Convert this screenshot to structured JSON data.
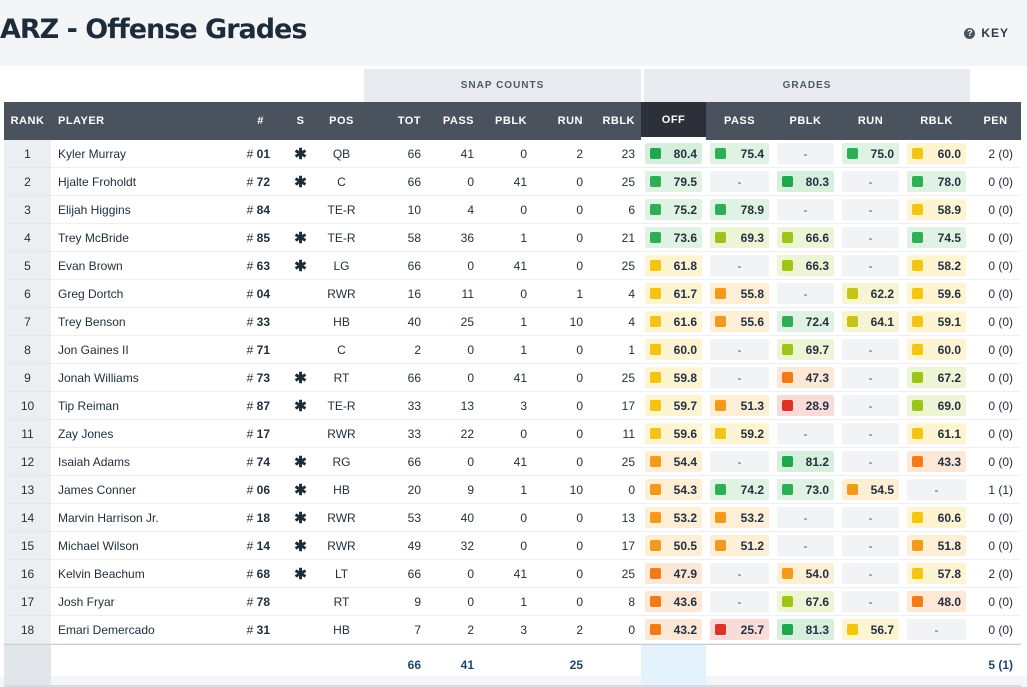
{
  "title": "ARZ - Offense Grades",
  "key": {
    "label": "KEY",
    "icon": "question-icon"
  },
  "groups": {
    "snap_counts": "SNAP COUNTS",
    "grades": "GRADES"
  },
  "columns": {
    "rank": "RANK",
    "player": "PLAYER",
    "num": "#",
    "starter": "S",
    "pos": "POS",
    "tot": "TOT",
    "pass": "PASS",
    "pblk": "PBLK",
    "run": "RUN",
    "rblk": "RBLK",
    "g_off": "OFF",
    "g_pass": "PASS",
    "g_pblk": "PBLK",
    "g_run": "RUN",
    "g_rblk": "RBLK",
    "pen": "PEN"
  },
  "grade_colors": {
    "dark_green": "#1fa84b",
    "green": "#2eae55",
    "light_green": "#9cc41d",
    "olive": "#c6c418",
    "yellow": "#f2c414",
    "orange": "#f39a1d",
    "dark_orange": "#ef7c17",
    "red": "#db3327"
  },
  "players": [
    {
      "rank": "1",
      "name": "Kyler Murray",
      "num": "01",
      "starter": "*",
      "pos": "QB",
      "tot": "66",
      "pass": "41",
      "pblk": "0",
      "run": "2",
      "rblk": "23",
      "g_off": "80.4",
      "g_pass": "75.4",
      "g_pblk": "-",
      "g_run": "75.0",
      "g_rblk": "60.0",
      "pen": "2 (0)"
    },
    {
      "rank": "2",
      "name": "Hjalte Froholdt",
      "num": "72",
      "starter": "*",
      "pos": "C",
      "tot": "66",
      "pass": "0",
      "pblk": "41",
      "run": "0",
      "rblk": "25",
      "g_off": "79.5",
      "g_pass": "-",
      "g_pblk": "80.3",
      "g_run": "-",
      "g_rblk": "78.0",
      "pen": "0 (0)"
    },
    {
      "rank": "3",
      "name": "Elijah Higgins",
      "num": "84",
      "starter": "",
      "pos": "TE-R",
      "tot": "10",
      "pass": "4",
      "pblk": "0",
      "run": "0",
      "rblk": "6",
      "g_off": "75.2",
      "g_pass": "78.9",
      "g_pblk": "-",
      "g_run": "-",
      "g_rblk": "58.9",
      "pen": "0 (0)"
    },
    {
      "rank": "4",
      "name": "Trey McBride",
      "num": "85",
      "starter": "*",
      "pos": "TE-R",
      "tot": "58",
      "pass": "36",
      "pblk": "1",
      "run": "0",
      "rblk": "21",
      "g_off": "73.6",
      "g_pass": "69.3",
      "g_pblk": "66.6",
      "g_run": "-",
      "g_rblk": "74.5",
      "pen": "0 (0)"
    },
    {
      "rank": "5",
      "name": "Evan Brown",
      "num": "63",
      "starter": "*",
      "pos": "LG",
      "tot": "66",
      "pass": "0",
      "pblk": "41",
      "run": "0",
      "rblk": "25",
      "g_off": "61.8",
      "g_pass": "-",
      "g_pblk": "66.3",
      "g_run": "-",
      "g_rblk": "58.2",
      "pen": "0 (0)"
    },
    {
      "rank": "6",
      "name": "Greg Dortch",
      "num": "04",
      "starter": "",
      "pos": "RWR",
      "tot": "16",
      "pass": "11",
      "pblk": "0",
      "run": "1",
      "rblk": "4",
      "g_off": "61.7",
      "g_pass": "55.8",
      "g_pblk": "-",
      "g_run": "62.2",
      "g_rblk": "59.6",
      "pen": "0 (0)"
    },
    {
      "rank": "7",
      "name": "Trey Benson",
      "num": "33",
      "starter": "",
      "pos": "HB",
      "tot": "40",
      "pass": "25",
      "pblk": "1",
      "run": "10",
      "rblk": "4",
      "g_off": "61.6",
      "g_pass": "55.6",
      "g_pblk": "72.4",
      "g_run": "64.1",
      "g_rblk": "59.1",
      "pen": "0 (0)"
    },
    {
      "rank": "8",
      "name": "Jon Gaines II",
      "num": "71",
      "starter": "",
      "pos": "C",
      "tot": "2",
      "pass": "0",
      "pblk": "1",
      "run": "0",
      "rblk": "1",
      "g_off": "60.0",
      "g_pass": "-",
      "g_pblk": "69.7",
      "g_run": "-",
      "g_rblk": "60.0",
      "pen": "0 (0)"
    },
    {
      "rank": "9",
      "name": "Jonah Williams",
      "num": "73",
      "starter": "*",
      "pos": "RT",
      "tot": "66",
      "pass": "0",
      "pblk": "41",
      "run": "0",
      "rblk": "25",
      "g_off": "59.8",
      "g_pass": "-",
      "g_pblk": "47.3",
      "g_run": "-",
      "g_rblk": "67.2",
      "pen": "0 (0)"
    },
    {
      "rank": "10",
      "name": "Tip Reiman",
      "num": "87",
      "starter": "*",
      "pos": "TE-R",
      "tot": "33",
      "pass": "13",
      "pblk": "3",
      "run": "0",
      "rblk": "17",
      "g_off": "59.7",
      "g_pass": "51.3",
      "g_pblk": "28.9",
      "g_run": "-",
      "g_rblk": "69.0",
      "pen": "0 (0)"
    },
    {
      "rank": "11",
      "name": "Zay Jones",
      "num": "17",
      "starter": "",
      "pos": "RWR",
      "tot": "33",
      "pass": "22",
      "pblk": "0",
      "run": "0",
      "rblk": "11",
      "g_off": "59.6",
      "g_pass": "59.2",
      "g_pblk": "-",
      "g_run": "-",
      "g_rblk": "61.1",
      "pen": "0 (0)"
    },
    {
      "rank": "12",
      "name": "Isaiah Adams",
      "num": "74",
      "starter": "*",
      "pos": "RG",
      "tot": "66",
      "pass": "0",
      "pblk": "41",
      "run": "0",
      "rblk": "25",
      "g_off": "54.4",
      "g_pass": "-",
      "g_pblk": "81.2",
      "g_run": "-",
      "g_rblk": "43.3",
      "pen": "0 (0)"
    },
    {
      "rank": "13",
      "name": "James Conner",
      "num": "06",
      "starter": "*",
      "pos": "HB",
      "tot": "20",
      "pass": "9",
      "pblk": "1",
      "run": "10",
      "rblk": "0",
      "g_off": "54.3",
      "g_pass": "74.2",
      "g_pblk": "73.0",
      "g_run": "54.5",
      "g_rblk": "-",
      "pen": "1 (1)"
    },
    {
      "rank": "14",
      "name": "Marvin Harrison Jr.",
      "num": "18",
      "starter": "*",
      "pos": "RWR",
      "tot": "53",
      "pass": "40",
      "pblk": "0",
      "run": "0",
      "rblk": "13",
      "g_off": "53.2",
      "g_pass": "53.2",
      "g_pblk": "-",
      "g_run": "-",
      "g_rblk": "60.6",
      "pen": "0 (0)"
    },
    {
      "rank": "15",
      "name": "Michael Wilson",
      "num": "14",
      "starter": "*",
      "pos": "RWR",
      "tot": "49",
      "pass": "32",
      "pblk": "0",
      "run": "0",
      "rblk": "17",
      "g_off": "50.5",
      "g_pass": "51.2",
      "g_pblk": "-",
      "g_run": "-",
      "g_rblk": "51.8",
      "pen": "0 (0)"
    },
    {
      "rank": "16",
      "name": "Kelvin Beachum",
      "num": "68",
      "starter": "*",
      "pos": "LT",
      "tot": "66",
      "pass": "0",
      "pblk": "41",
      "run": "0",
      "rblk": "25",
      "g_off": "47.9",
      "g_pass": "-",
      "g_pblk": "54.0",
      "g_run": "-",
      "g_rblk": "57.8",
      "pen": "2 (0)"
    },
    {
      "rank": "17",
      "name": "Josh Fryar",
      "num": "78",
      "starter": "",
      "pos": "RT",
      "tot": "9",
      "pass": "0",
      "pblk": "1",
      "run": "0",
      "rblk": "8",
      "g_off": "43.6",
      "g_pass": "-",
      "g_pblk": "67.6",
      "g_run": "-",
      "g_rblk": "48.0",
      "pen": "0 (0)"
    },
    {
      "rank": "18",
      "name": "Emari Demercado",
      "num": "31",
      "starter": "",
      "pos": "HB",
      "tot": "7",
      "pass": "2",
      "pblk": "3",
      "run": "2",
      "rblk": "0",
      "g_off": "43.2",
      "g_pass": "25.7",
      "g_pblk": "81.3",
      "g_run": "56.7",
      "g_rblk": "-",
      "pen": "0 (0)"
    }
  ],
  "totals": {
    "tot": "66",
    "pass": "41",
    "run": "25",
    "pen": "5 (1)"
  }
}
